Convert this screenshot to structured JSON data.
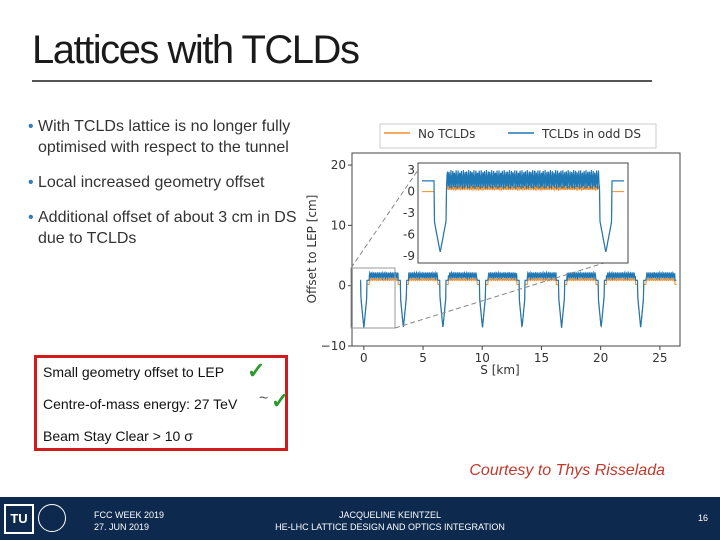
{
  "slide": {
    "title": "Lattices with TCLDs",
    "bullets": [
      "With TCLDs lattice is no longer fully optimised with respect to the tunnel",
      "Local increased geometry offset",
      "Additional offset of about 3 cm in DS due to TCLDs"
    ],
    "callout": {
      "line1": "Small geometry offset to LEP",
      "line2": "Centre-of-mass energy: 27 TeV",
      "line3": "Beam Stay Clear > 10 σ",
      "tilde": "~"
    },
    "courtesy": "Courtesy to Thys Risselada"
  },
  "footer": {
    "logo_text": "TU",
    "event": "FCC WEEK 2019",
    "date": "27. JUN 2019",
    "author": "JACQUELINE KEINTZEL",
    "subtitle": "HE-LHC LATTICE DESIGN AND OPTICS INTEGRATION",
    "page": "16"
  },
  "colors": {
    "accent_blue": "#2f7fb9",
    "callout_border": "#d01c1c",
    "check_green": "#2a9a2a",
    "courtesy_red": "#c0392b",
    "footer_bg": "#0d2a4e",
    "series_no_tclds": "#f28e2b",
    "series_tclds": "#1f77b4"
  },
  "chart_data": {
    "type": "line",
    "xlabel": "S [km]",
    "ylabel": "Offset to LEP [cm]",
    "xlim": [
      -1,
      26.7
    ],
    "ylim": [
      -10,
      22
    ],
    "xticks": [
      0,
      5,
      10,
      15,
      20,
      25
    ],
    "yticks": [
      -10,
      0,
      10,
      20
    ],
    "legend": "top",
    "series": [
      {
        "name": "No TCLDs"
      },
      {
        "name": "TCLDs in odd DS"
      }
    ],
    "arc_centers_km": [
      0,
      3.34,
      6.68,
      10.02,
      13.36,
      16.7,
      20.04,
      23.38
    ],
    "baseline_no_tclds_cm": 1,
    "arc_peak_tclds_cm": 1.7,
    "dip_min_cm": -7,
    "inset": {
      "yticks": [
        3,
        0,
        -3,
        -6,
        -9
      ],
      "ylim": [
        -10,
        4
      ],
      "baseline_cm": 0.5,
      "dip_min_cm": -8.5
    }
  }
}
